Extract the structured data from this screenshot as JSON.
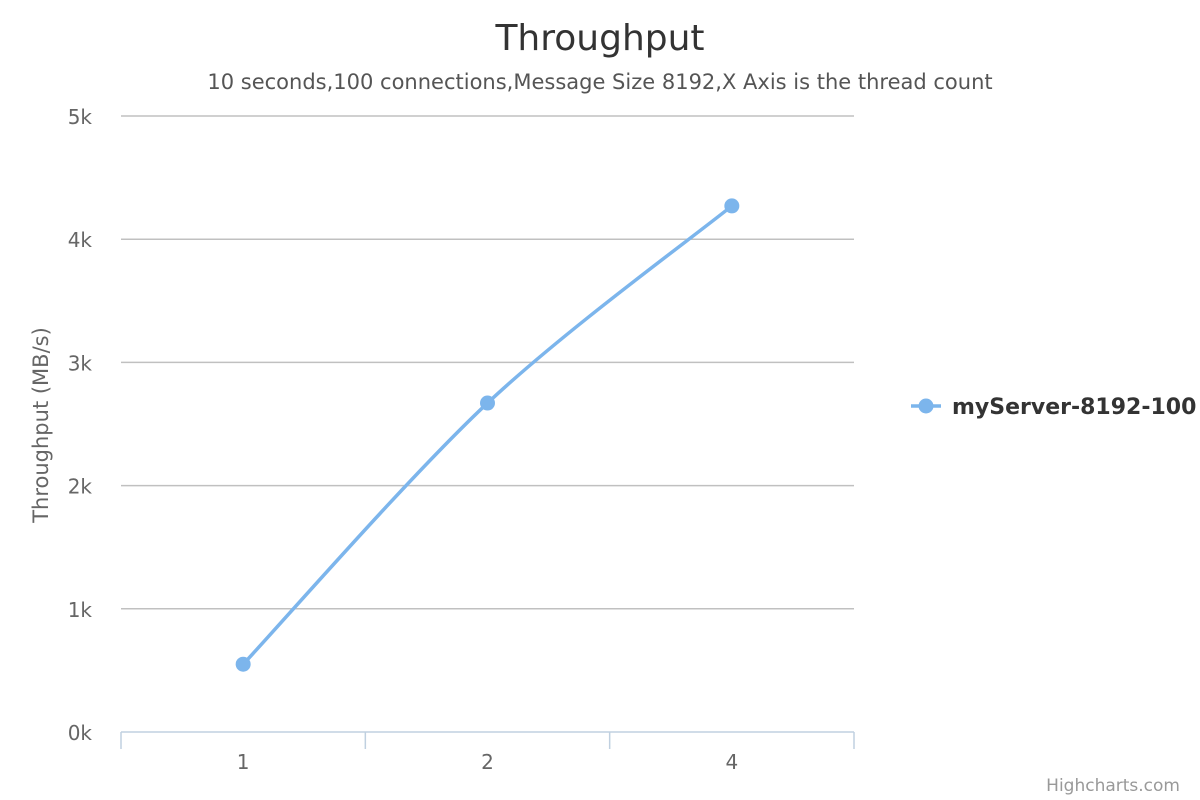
{
  "chart_data": {
    "type": "line",
    "title": "Throughput",
    "subtitle": "10 seconds,100 connections,Message Size 8192,X Axis is the thread count",
    "ylabel": "Throughput (MB/s)",
    "xlabel": "",
    "categories": [
      "1",
      "2",
      "4"
    ],
    "yticks": [
      "0k",
      "1k",
      "2k",
      "3k",
      "4k",
      "5k"
    ],
    "ylim": [
      0,
      5000
    ],
    "grid": true,
    "legend_position": "right",
    "series": [
      {
        "name": "myServer-8192-100",
        "values": [
          550,
          2670,
          4270
        ]
      }
    ]
  },
  "credits": "Highcharts.com",
  "colors": {
    "series": "#7cb5ec",
    "grid": "#c0c0c0",
    "axis": "#c0d0e0",
    "title": "#333333",
    "subtitle": "#555555",
    "tick_label": "#666666",
    "credits": "#999999"
  }
}
